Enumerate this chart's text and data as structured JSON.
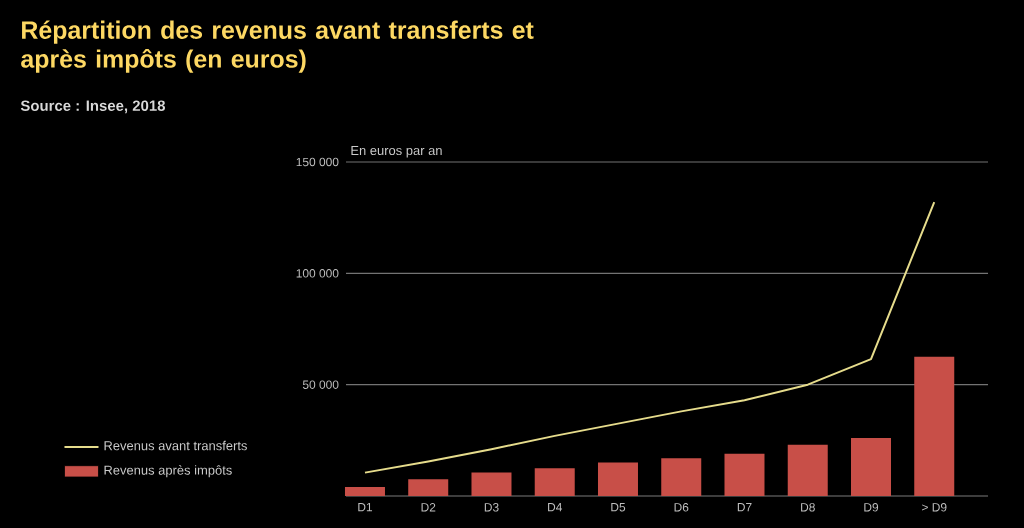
{
  "chart_data": {
    "type": "bar",
    "title": "Répartition des revenus avant transferts et après impôts (en euros)",
    "ylabel": "En euros par an",
    "annotations": [
      "Source : Insee, 2018"
    ],
    "categories": [
      "D1",
      "D2",
      "D3",
      "D4",
      "D5",
      "D6",
      "D7",
      "D8",
      "D9",
      "> D9"
    ],
    "series": [
      {
        "name": "Revenus avant transferts",
        "type": "line",
        "color": "#e6dc8c",
        "values": [
          10500,
          15500,
          21000,
          27000,
          32500,
          38000,
          43000,
          50000,
          61500,
          132000
        ]
      },
      {
        "name": "Revenus après impôts",
        "color": "#c84f48",
        "values": [
          4000,
          7500,
          10500,
          12500,
          15000,
          17000,
          19000,
          23000,
          26000,
          62500
        ]
      }
    ],
    "ylim": [
      0,
      150000
    ],
    "yticks": [
      {
        "value": 50000,
        "label": "50 000"
      },
      {
        "value": 100000,
        "label": "100 000"
      },
      {
        "value": 150000,
        "label": "150 000"
      }
    ],
    "grid": "y",
    "legend": "bottom left",
    "marker": "none"
  }
}
